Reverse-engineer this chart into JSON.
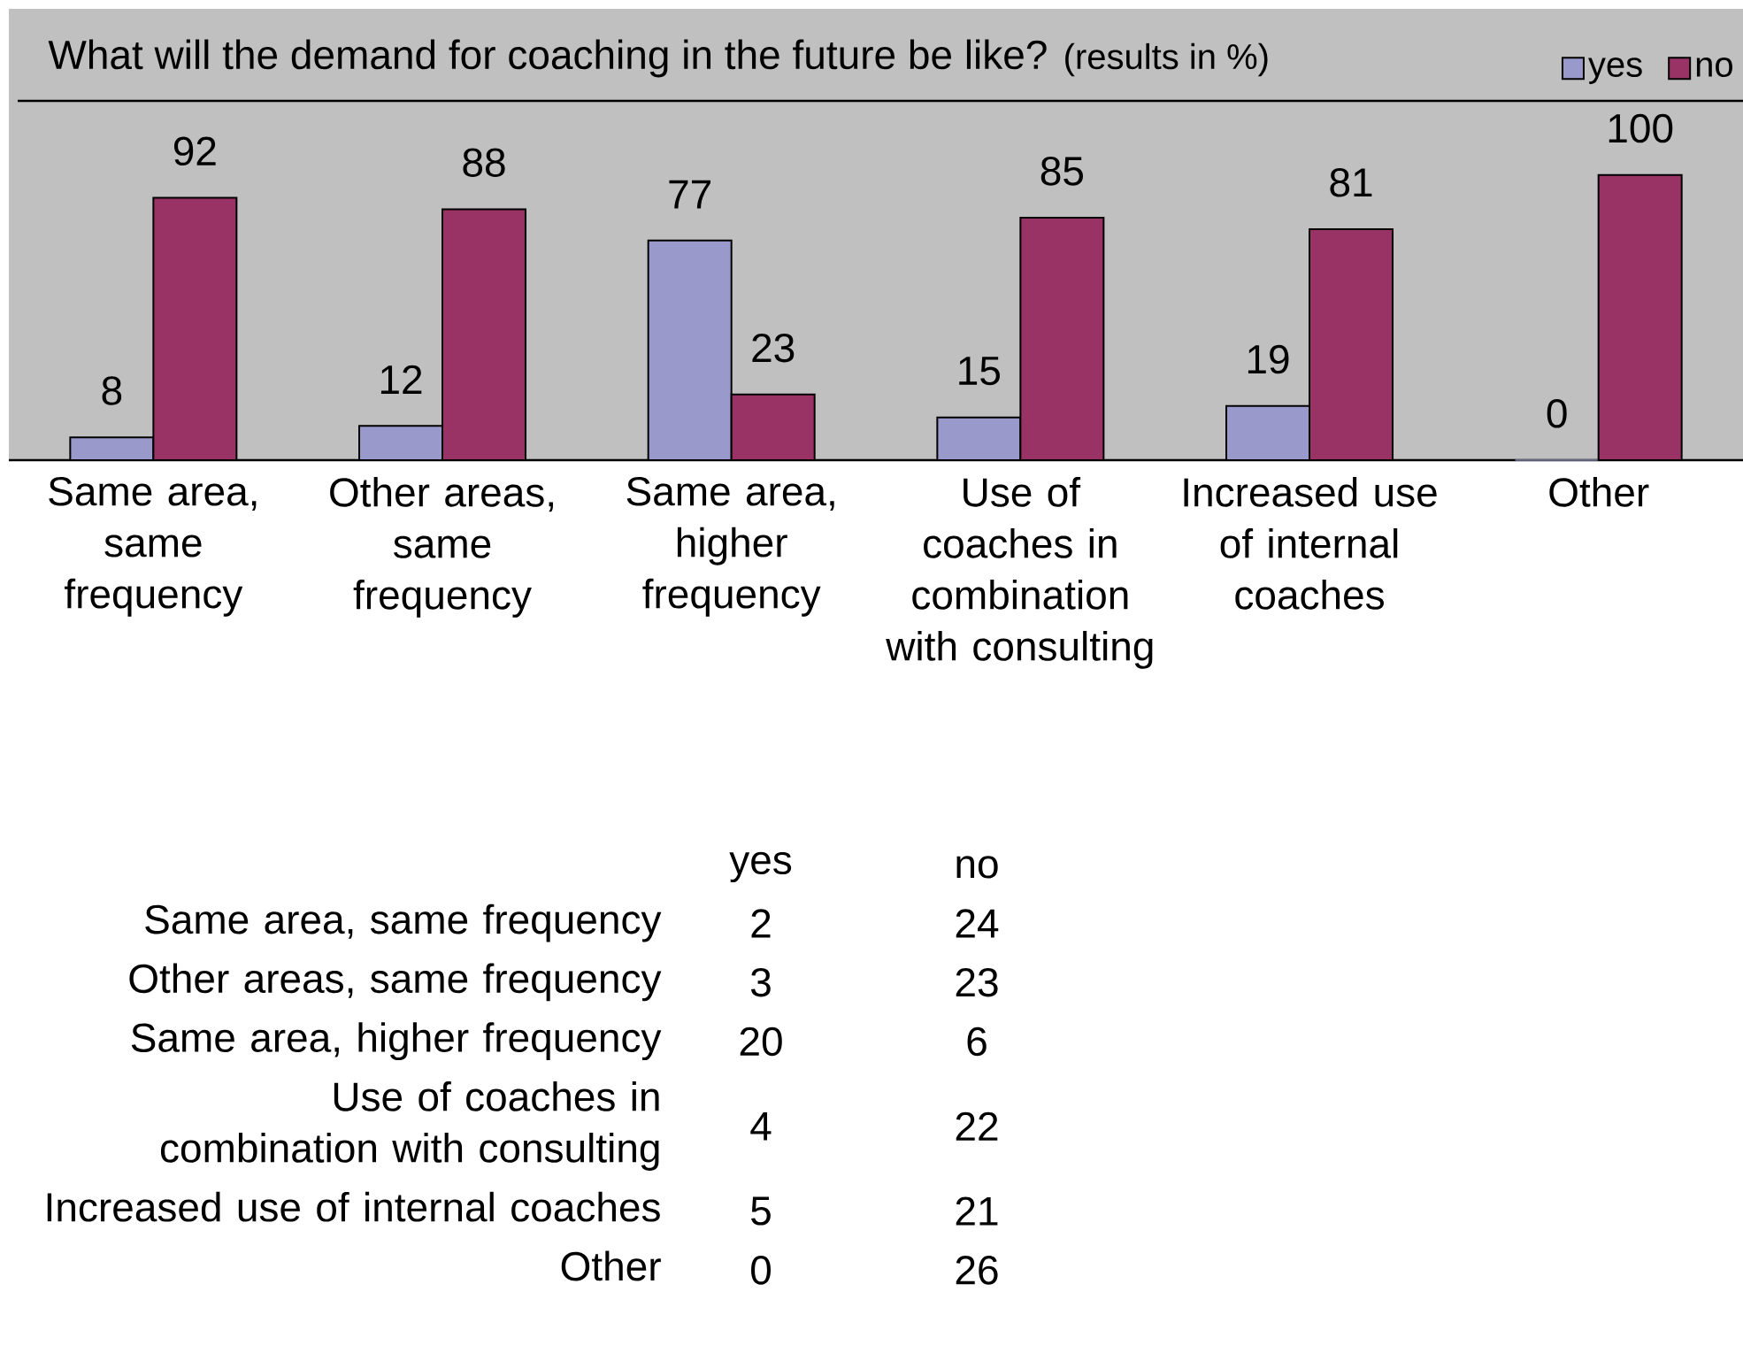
{
  "chart_data": [
    {
      "type": "bar",
      "title": "What will the demand for coaching in the future be like?",
      "subtitle": "(results in %)",
      "categories": [
        "Same area, same frequency",
        "Other areas, same frequency",
        "Same area, higher frequency",
        "Use of coaches in combination with consulting",
        "Increased use of internal coaches",
        "Other"
      ],
      "series": [
        {
          "name": "yes",
          "color": "#9999cc",
          "values": [
            8,
            12,
            77,
            15,
            19,
            0
          ]
        },
        {
          "name": "no",
          "color": "#993366",
          "values": [
            92,
            88,
            23,
            85,
            81,
            100
          ]
        }
      ],
      "data_labels": true,
      "legend": "top right"
    },
    {
      "type": "other",
      "categories": [
        "Same area, same frequency",
        "Other areas, same frequency",
        "Same area, higher frequency",
        "Use of coaches in combination with consulting",
        "Increased use of internal coaches",
        "Other"
      ],
      "series": [
        {
          "name": "yes",
          "values": [
            2,
            3,
            20,
            4,
            5,
            0
          ]
        },
        {
          "name": "no",
          "values": [
            24,
            23,
            6,
            22,
            21,
            26
          ]
        }
      ],
      "data_labels": true
    }
  ]
}
